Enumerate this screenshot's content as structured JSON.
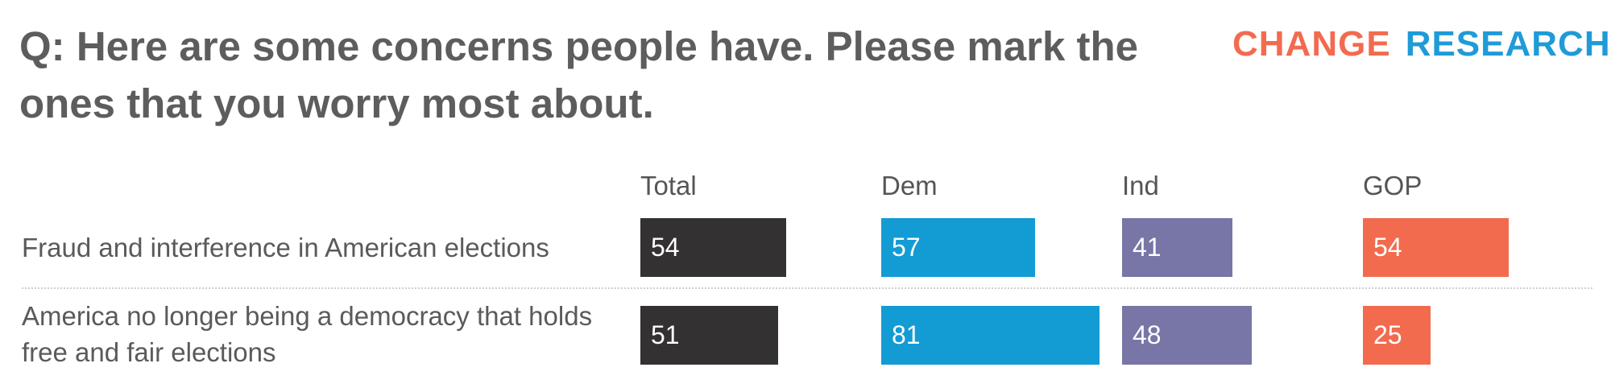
{
  "title": "Q: Here are some concerns people have. Please mark the ones that you worry most about.",
  "logo": {
    "word1": "CHANGE",
    "word2": "RESEARCH",
    "mark": "™"
  },
  "colors": {
    "Total": "#333132",
    "Dem": "#139bd4",
    "Ind": "#7776a6",
    "GOP": "#f26b4f"
  },
  "chart_data": {
    "type": "bar",
    "orientation": "horizontal",
    "title": "Q: Here are some concerns people have. Please mark the ones that you worry most about.",
    "categories": [
      "Fraud and interference in American elections",
      "America no longer being a democracy that holds free and fair elections"
    ],
    "series": [
      {
        "name": "Total",
        "values": [
          54,
          51
        ]
      },
      {
        "name": "Dem",
        "values": [
          57,
          81
        ]
      },
      {
        "name": "Ind",
        "values": [
          41,
          48
        ]
      },
      {
        "name": "GOP",
        "values": [
          54,
          25
        ]
      }
    ],
    "data_labels": true,
    "grid": false
  }
}
